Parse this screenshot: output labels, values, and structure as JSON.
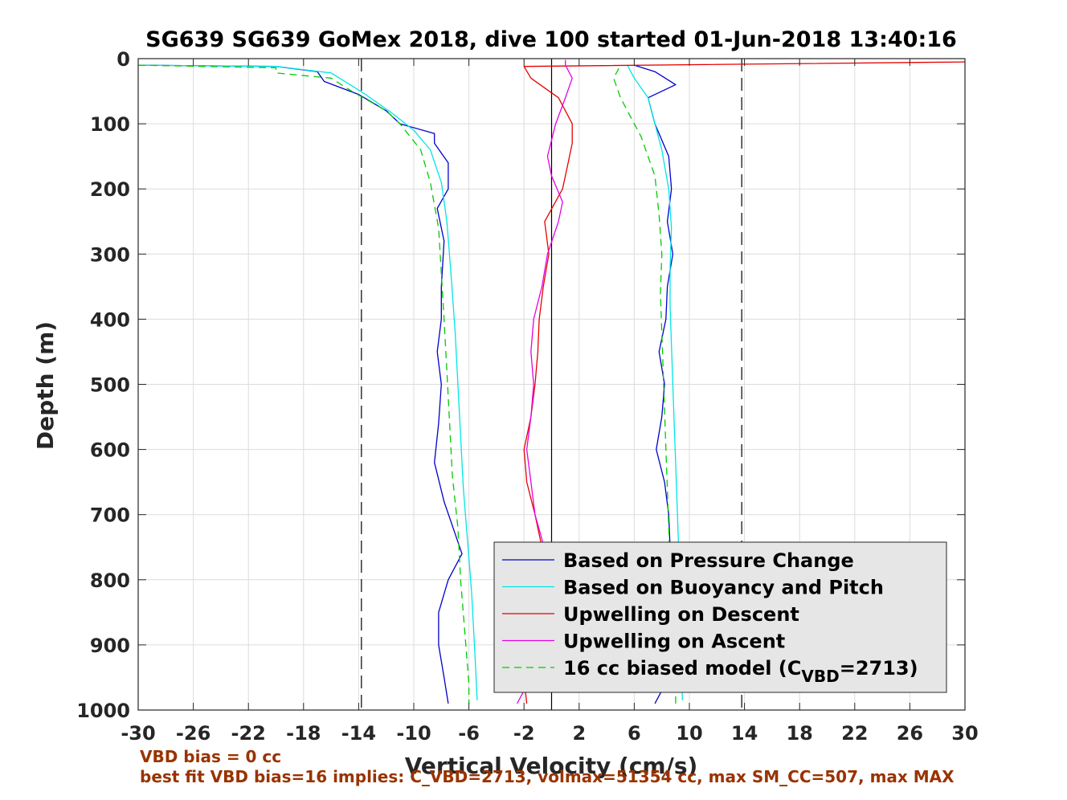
{
  "chart_data": {
    "type": "line",
    "title": "SG639 SG639 GoMex 2018, dive 100 started 01-Jun-2018 13:40:16",
    "xlabel": "Vertical Velocity (cm/s)",
    "ylabel": "Depth (m)",
    "xlim": [
      -30,
      30
    ],
    "ylim": [
      0,
      1000
    ],
    "y_reversed": true,
    "xticks": [
      -30,
      -26,
      -22,
      -18,
      -14,
      -10,
      -6,
      -2,
      2,
      6,
      10,
      14,
      18,
      22,
      26,
      30
    ],
    "yticks": [
      0,
      100,
      200,
      300,
      400,
      500,
      600,
      700,
      800,
      900,
      1000
    ],
    "grid": true,
    "legend_position": "bottom-right",
    "reference_lines": [
      {
        "x": -13.8,
        "style": "dashed",
        "color": "#000000"
      },
      {
        "x": 13.8,
        "style": "dashed",
        "color": "#000000"
      },
      {
        "x": 0,
        "style": "solid",
        "color": "#000000"
      }
    ],
    "series": [
      {
        "name": "Based on Pressure Change",
        "color": "#0000cc",
        "style": "solid",
        "marker": "line",
        "descent": [
          [
            -30,
            10
          ],
          [
            -20,
            12
          ],
          [
            -17,
            20
          ],
          [
            -16.5,
            35
          ],
          [
            -14,
            55
          ],
          [
            -12,
            80
          ],
          [
            -11,
            100
          ],
          [
            -8.5,
            115
          ],
          [
            -8.5,
            130
          ],
          [
            -7.5,
            160
          ],
          [
            -7.5,
            200
          ],
          [
            -8.3,
            230
          ],
          [
            -7.8,
            280
          ],
          [
            -8,
            350
          ],
          [
            -8,
            400
          ],
          [
            -8.3,
            450
          ],
          [
            -8,
            500
          ],
          [
            -8.2,
            560
          ],
          [
            -8.5,
            620
          ],
          [
            -7.8,
            680
          ],
          [
            -6.5,
            760
          ],
          [
            -7.5,
            800
          ],
          [
            -8.2,
            850
          ],
          [
            -8.2,
            900
          ],
          [
            -7.8,
            950
          ],
          [
            -7.5,
            990
          ]
        ],
        "ascent": [
          [
            7.5,
            990
          ],
          [
            8.5,
            950
          ],
          [
            8.3,
            900
          ],
          [
            8.3,
            850
          ],
          [
            8.2,
            800
          ],
          [
            8.6,
            750
          ],
          [
            8.5,
            700
          ],
          [
            8.2,
            650
          ],
          [
            7.6,
            600
          ],
          [
            8,
            550
          ],
          [
            8.2,
            500
          ],
          [
            7.8,
            450
          ],
          [
            8.3,
            400
          ],
          [
            8.4,
            350
          ],
          [
            8.8,
            300
          ],
          [
            8.4,
            250
          ],
          [
            8.7,
            200
          ],
          [
            8.5,
            150
          ],
          [
            7.5,
            100
          ],
          [
            7,
            60
          ],
          [
            9,
            40
          ],
          [
            7.5,
            20
          ],
          [
            6,
            10
          ]
        ]
      },
      {
        "name": "Based on Buoyancy and Pitch",
        "color": "#00e5e5",
        "style": "solid",
        "marker": "line",
        "descent": [
          [
            -30,
            10
          ],
          [
            -20,
            12
          ],
          [
            -16,
            22
          ],
          [
            -15,
            35
          ],
          [
            -13.5,
            55
          ],
          [
            -11.5,
            85
          ],
          [
            -10,
            110
          ],
          [
            -8.8,
            140
          ],
          [
            -8,
            190
          ],
          [
            -7.6,
            250
          ],
          [
            -7.3,
            330
          ],
          [
            -7,
            420
          ],
          [
            -6.8,
            500
          ],
          [
            -6.6,
            580
          ],
          [
            -6.4,
            660
          ],
          [
            -6.1,
            740
          ],
          [
            -5.8,
            820
          ],
          [
            -5.6,
            900
          ],
          [
            -5.4,
            985
          ]
        ],
        "ascent": [
          [
            9.5,
            985
          ],
          [
            9.4,
            940
          ],
          [
            9.3,
            880
          ],
          [
            9.2,
            800
          ],
          [
            9.2,
            740
          ],
          [
            9.1,
            680
          ],
          [
            9.0,
            620
          ],
          [
            8.9,
            560
          ],
          [
            8.8,
            500
          ],
          [
            8.7,
            440
          ],
          [
            8.6,
            380
          ],
          [
            8.6,
            320
          ],
          [
            8.7,
            260
          ],
          [
            8.5,
            200
          ],
          [
            8,
            140
          ],
          [
            7.5,
            100
          ],
          [
            7,
            60
          ],
          [
            6,
            30
          ],
          [
            5.5,
            10
          ]
        ]
      },
      {
        "name": "Upwelling on Descent",
        "color": "#e60000",
        "style": "solid",
        "marker": "line",
        "descent": [
          [
            30,
            5
          ],
          [
            -2,
            12
          ],
          [
            -1.5,
            30
          ],
          [
            0.5,
            60
          ],
          [
            1.5,
            100
          ],
          [
            1.5,
            130
          ],
          [
            1.2,
            160
          ],
          [
            0.8,
            200
          ],
          [
            -0.5,
            250
          ],
          [
            -0.2,
            300
          ],
          [
            -0.6,
            350
          ],
          [
            -0.9,
            400
          ],
          [
            -1,
            450
          ],
          [
            -1.2,
            500
          ],
          [
            -1.5,
            550
          ],
          [
            -2,
            600
          ],
          [
            -1.8,
            650
          ],
          [
            -1.2,
            700
          ],
          [
            -0.6,
            760
          ],
          [
            -1.5,
            800
          ],
          [
            -1.8,
            850
          ],
          [
            -1.9,
            900
          ],
          [
            -2,
            950
          ],
          [
            -1.8,
            990
          ]
        ]
      },
      {
        "name": "Upwelling on Ascent",
        "color": "#e600e6",
        "style": "solid",
        "marker": "line",
        "ascent": [
          [
            -2.5,
            990
          ],
          [
            -1.5,
            950
          ],
          [
            -1.6,
            900
          ],
          [
            -1.4,
            850
          ],
          [
            -0.6,
            800
          ],
          [
            -0.4,
            760
          ],
          [
            -1.2,
            700
          ],
          [
            -1.5,
            650
          ],
          [
            -1.8,
            600
          ],
          [
            -1.5,
            550
          ],
          [
            -1.3,
            500
          ],
          [
            -1.5,
            450
          ],
          [
            -1.3,
            400
          ],
          [
            -0.7,
            350
          ],
          [
            -0.3,
            300
          ],
          [
            0.5,
            250
          ],
          [
            0.8,
            220
          ],
          [
            0,
            180
          ],
          [
            -0.3,
            150
          ],
          [
            0.3,
            100
          ],
          [
            1,
            60
          ],
          [
            1.5,
            30
          ],
          [
            1,
            10
          ],
          [
            1,
            2
          ]
        ]
      },
      {
        "name": "16 cc biased model (C",
        "subscript": "VBD",
        "suffix": "=2713)",
        "color": "#00cc00",
        "style": "dashed",
        "marker": "line",
        "descent": [
          [
            -30,
            10
          ],
          [
            -20,
            14
          ],
          [
            -20,
            22
          ],
          [
            -16,
            30
          ],
          [
            -14.5,
            50
          ],
          [
            -12,
            80
          ],
          [
            -11,
            100
          ],
          [
            -9.5,
            140
          ],
          [
            -8.8,
            190
          ],
          [
            -8.2,
            260
          ],
          [
            -8,
            330
          ],
          [
            -7.8,
            400
          ],
          [
            -7.6,
            480
          ],
          [
            -7.4,
            560
          ],
          [
            -7.2,
            640
          ],
          [
            -6.8,
            720
          ],
          [
            -6.6,
            800
          ],
          [
            -6.3,
            880
          ],
          [
            -6,
            960
          ],
          [
            -6,
            990
          ]
        ],
        "ascent": [
          [
            9,
            990
          ],
          [
            9,
            950
          ],
          [
            8.8,
            900
          ],
          [
            8.7,
            840
          ],
          [
            8.6,
            780
          ],
          [
            8.5,
            720
          ],
          [
            8.4,
            660
          ],
          [
            8.3,
            600
          ],
          [
            8.2,
            540
          ],
          [
            8.1,
            480
          ],
          [
            8,
            420
          ],
          [
            7.9,
            360
          ],
          [
            8,
            300
          ],
          [
            7.8,
            240
          ],
          [
            7.5,
            180
          ],
          [
            6.5,
            120
          ],
          [
            5,
            60
          ],
          [
            4.5,
            30
          ],
          [
            5,
            10
          ]
        ]
      }
    ]
  },
  "notes": {
    "bias_line": "VBD bias = 0 cc",
    "best_fit_line": "best fit VBD bias=16 implies: C_VBD=2713, volmax=51354 cc, max SM_CC=507, max MAX"
  }
}
